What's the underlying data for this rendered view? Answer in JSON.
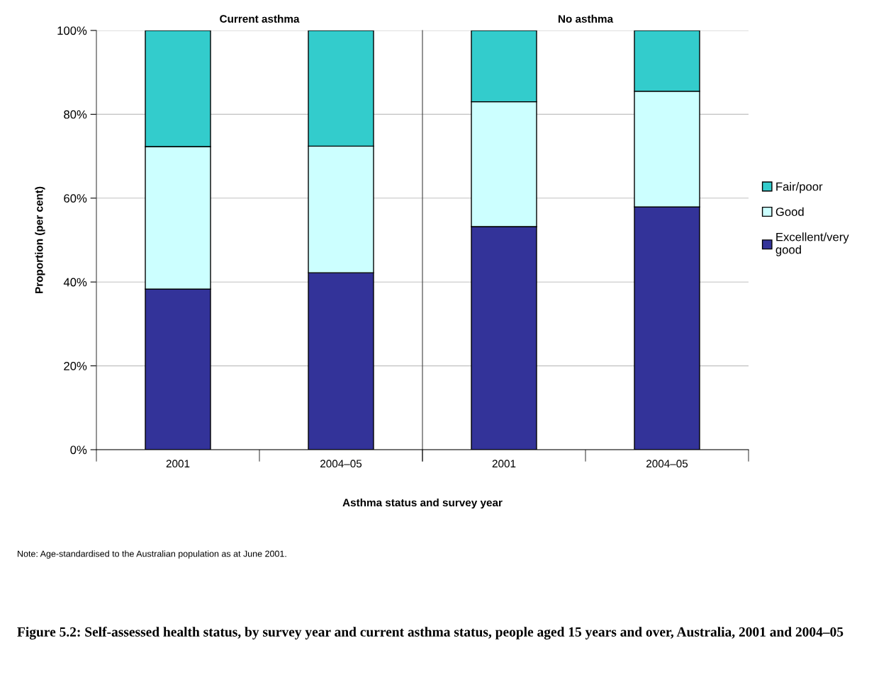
{
  "chart_data": [
    {
      "type": "bar",
      "stacked": true,
      "title": "Current asthma",
      "ylabel": "Proportion (per cent)",
      "xlabel": "Asthma status and survey year",
      "categories": [
        "2001",
        "2004–05"
      ],
      "series": [
        {
          "color": "#333399",
          "values": [
            38.3,
            42.2
          ]
        },
        {
          "color": "#ccffff",
          "values": [
            34.0,
            30.2
          ]
        },
        {
          "color": "#33cccc",
          "values": [
            27.7,
            27.6
          ]
        }
      ],
      "ylim": [
        0,
        100
      ],
      "yticks": [
        {
          "value": 0,
          "label": "0%"
        },
        {
          "value": 20,
          "label": "20%"
        },
        {
          "value": 40,
          "label": "40%"
        },
        {
          "value": 60,
          "label": "60%"
        },
        {
          "value": 80,
          "label": "80%"
        },
        {
          "value": 100,
          "label": "100%"
        }
      ],
      "grid": "y",
      "legend": false,
      "annotations": [
        "Note: Age-standardised to the Australian population as at June 2001.",
        "Figure 5.2: Self-assessed health status, by survey year and current asthma status, people aged 15 years and over, Australia, 2001 and 2004–05"
      ]
    },
    {
      "type": "bar",
      "stacked": true,
      "title": "No asthma",
      "categories": [
        "2001",
        "2004–05"
      ],
      "series": [
        {
          "name": "Excellent/very good",
          "color": "#333399",
          "values": [
            53.2,
            57.9
          ]
        },
        {
          "name": "Good",
          "color": "#ccffff",
          "values": [
            29.8,
            27.6
          ]
        },
        {
          "name": "Fair/poor",
          "color": "#33cccc",
          "values": [
            17.0,
            14.5
          ]
        }
      ],
      "ylim": [
        0,
        100
      ],
      "yticks": [
        0,
        20,
        40,
        60,
        80,
        100
      ],
      "grid": "y",
      "legend": "right",
      "tick_labels": "x"
    }
  ]
}
